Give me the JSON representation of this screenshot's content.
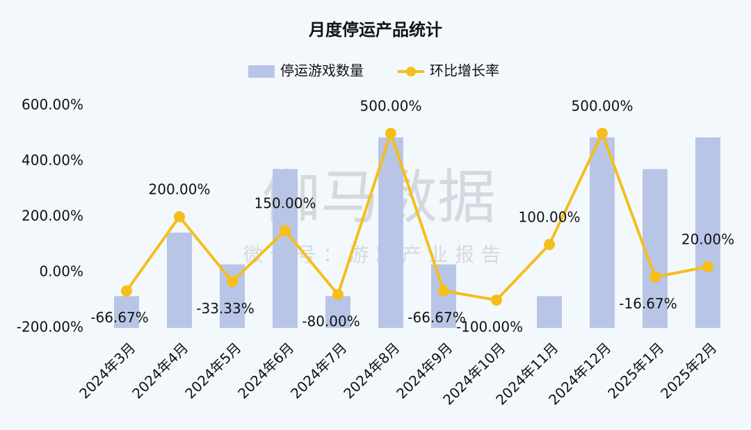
{
  "chart_data": {
    "type": "combo",
    "title": "月度停运产品统计",
    "watermark": "伽马数据",
    "watermark_subtitle": "微信号：游戏产业报告",
    "categories": [
      "2024年3月",
      "2024年4月",
      "2024年5月",
      "2024年6月",
      "2024年7月",
      "2024年8月",
      "2024年9月",
      "2024年10月",
      "2024年11月",
      "2024年12月",
      "2025年1月",
      "2025年2月"
    ],
    "series": [
      {
        "name": "停运游戏数量",
        "type": "bar",
        "axis": "y2",
        "color": "#b9c5e7",
        "values": [
          1,
          3,
          2,
          5,
          1,
          6,
          2,
          0,
          1,
          6,
          5,
          6
        ]
      },
      {
        "name": "环比增长率",
        "type": "line",
        "color": "#f5be1a",
        "values": [
          -66.67,
          200,
          -33.33,
          150,
          -80,
          500,
          -66.67,
          -100,
          100,
          500,
          -16.67,
          20
        ],
        "value_labels": [
          "-66.67%",
          "200.00%",
          "-33.33%",
          "150.00%",
          "-80.00%",
          "500.00%",
          "-66.67%",
          "-100.00%",
          "100.00%",
          "500.00%",
          "-16.67%",
          "20.00%"
        ]
      }
    ],
    "ylim": [
      -200,
      600
    ],
    "yticks": [
      {
        "value": -200,
        "label": "-200.00%"
      },
      {
        "value": 0,
        "label": "0.00%"
      },
      {
        "value": 200,
        "label": "200.00%"
      },
      {
        "value": 400,
        "label": "400.00%"
      },
      {
        "value": 600,
        "label": "600.00%"
      }
    ],
    "y2lim": [
      0,
      7
    ],
    "grid": false,
    "legend": "top"
  }
}
